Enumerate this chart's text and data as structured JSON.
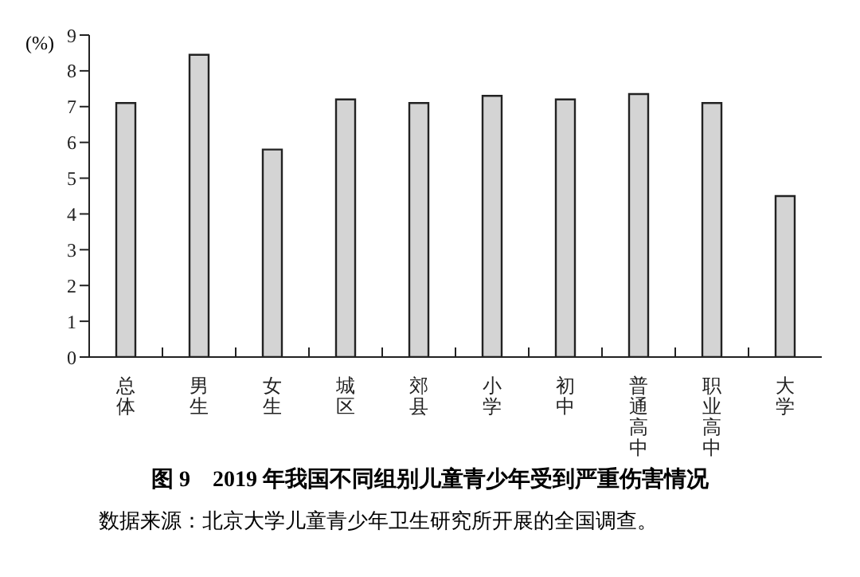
{
  "chart_data": {
    "type": "bar",
    "title": "图 9　2019 年我国不同组别儿童青少年受到严重伤害情况",
    "ylabel": "(%)",
    "annotations": [
      "数据来源：北京大学儿童青少年卫生研究所开展的全国调查。"
    ],
    "categories": [
      "总体",
      "男生",
      "女生",
      "城区",
      "郊县",
      "小学",
      "初中",
      "普通高中",
      "职业高中",
      "大学"
    ],
    "values": [
      7.1,
      8.45,
      5.8,
      7.2,
      7.1,
      7.3,
      7.2,
      7.35,
      7.1,
      4.5
    ],
    "color": "#d4d4d4",
    "ylim": [
      0,
      9
    ],
    "yticks": [
      0,
      1,
      2,
      3,
      4,
      5,
      6,
      7,
      8,
      9
    ],
    "grid": false,
    "legend": false
  }
}
